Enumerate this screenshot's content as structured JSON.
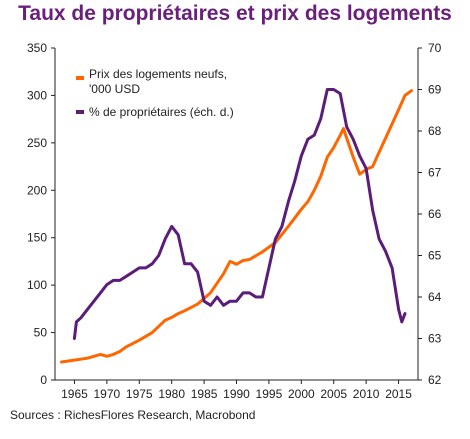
{
  "title": "Taux de propriétaires et prix des logements",
  "source": "Sources : RichesFlores Research, Macrobond",
  "colors": {
    "title": "#6b1f7c",
    "price": "#ff6600",
    "ownership": "#5b1d7a"
  },
  "chart_data": {
    "type": "line",
    "x_ticks": [
      "1965",
      "1970",
      "1975",
      "1980",
      "1985",
      "1990",
      "1995",
      "2000",
      "2005",
      "2010",
      "2015"
    ],
    "y_left_ticks": [
      "0",
      "50",
      "100",
      "150",
      "200",
      "250",
      "300",
      "350"
    ],
    "y_right_ticks": [
      "62",
      "63",
      "64",
      "65",
      "66",
      "67",
      "68",
      "69",
      "70"
    ],
    "xlim": [
      1962,
      2018
    ],
    "ylim_left": [
      0,
      350
    ],
    "ylim_right": [
      62,
      70
    ],
    "legend_position": "top-left",
    "series": [
      {
        "name": "Prix des logements neufs, '000 USD",
        "name_line1": "Prix des logements neufs,",
        "name_line2": "'000 USD",
        "axis": "left",
        "color": "#ff6600",
        "x": [
          1963,
          1965,
          1967,
          1969,
          1970,
          1971,
          1972,
          1973,
          1975,
          1977,
          1979,
          1980,
          1981,
          1982,
          1984,
          1986,
          1988,
          1989,
          1990,
          1991,
          1992,
          1994,
          1996,
          1998,
          2000,
          2001,
          2002,
          2003,
          2004,
          2005,
          2006,
          2006.5,
          2007,
          2008,
          2009,
          2010,
          2011,
          2012,
          2013,
          2014,
          2015,
          2016,
          2017
        ],
        "y": [
          19,
          21,
          23,
          27,
          25,
          27,
          30,
          35,
          42,
          50,
          63,
          66,
          70,
          73,
          80,
          92,
          112,
          125,
          122,
          126,
          127,
          135,
          145,
          162,
          180,
          188,
          200,
          215,
          235,
          245,
          258,
          265,
          255,
          235,
          217,
          222,
          225,
          240,
          255,
          270,
          285,
          300,
          305
        ]
      },
      {
        "name": "% de propriétaires (éch. d.)",
        "axis": "right",
        "color": "#5b1d7a",
        "x": [
          1965,
          1965.3,
          1966,
          1967,
          1968,
          1969,
          1970,
          1971,
          1972,
          1973,
          1974,
          1975,
          1976,
          1977,
          1978,
          1979,
          1980,
          1981,
          1982,
          1983,
          1984,
          1985,
          1986,
          1987,
          1988,
          1989,
          1990,
          1991,
          1992,
          1993,
          1994,
          1995,
          1996,
          1997,
          1998,
          1999,
          2000,
          2001,
          2002,
          2003,
          2004,
          2005,
          2006,
          2007,
          2008,
          2009,
          2010,
          2011,
          2012,
          2013,
          2014,
          2015,
          2015.5,
          2016
        ],
        "y": [
          63.0,
          63.4,
          63.5,
          63.7,
          63.9,
          64.1,
          64.3,
          64.4,
          64.4,
          64.5,
          64.6,
          64.7,
          64.7,
          64.8,
          65.0,
          65.4,
          65.7,
          65.5,
          64.8,
          64.8,
          64.6,
          63.9,
          63.8,
          64.0,
          63.8,
          63.9,
          63.9,
          64.1,
          64.1,
          64.0,
          64.0,
          64.7,
          65.4,
          65.7,
          66.3,
          66.8,
          67.4,
          67.8,
          67.9,
          68.3,
          69.0,
          69.0,
          68.9,
          68.1,
          67.8,
          67.4,
          67.1,
          66.1,
          65.4,
          65.1,
          64.7,
          63.7,
          63.4,
          63.6
        ]
      }
    ]
  }
}
